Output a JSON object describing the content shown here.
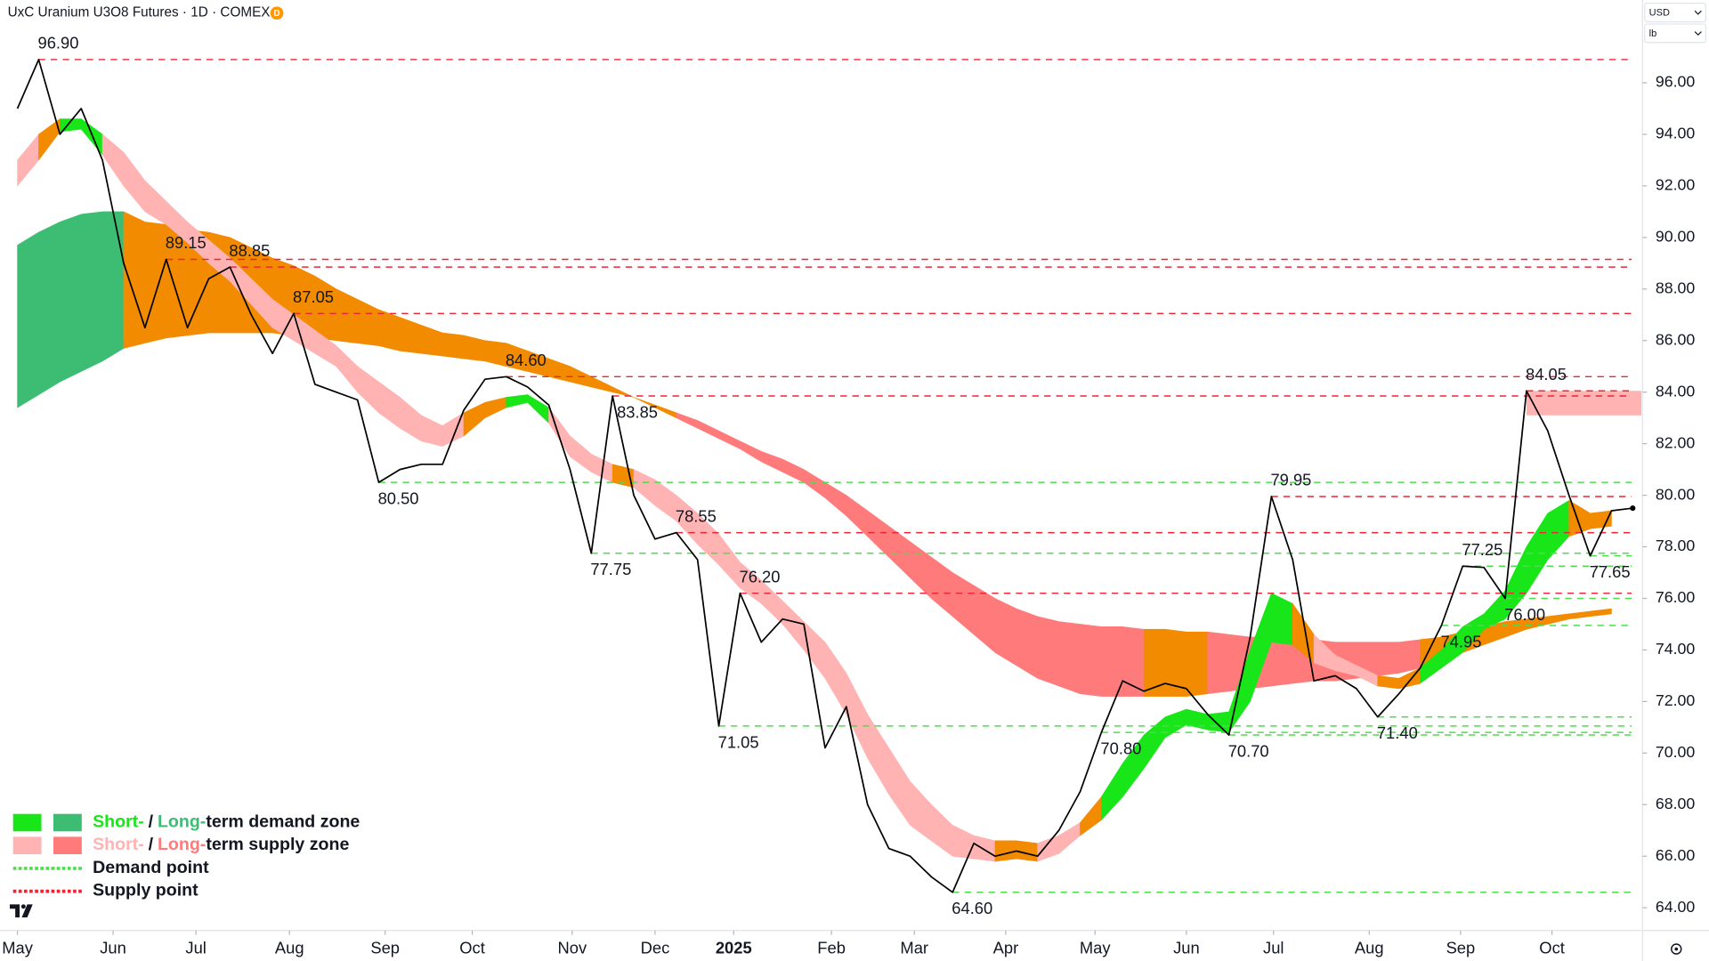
{
  "header": {
    "title": "UxC Uranium U3O8 Futures · 1D · COMEX",
    "badge": "D",
    "currency": "USD",
    "unit": "lb"
  },
  "chart_data": {
    "type": "line",
    "color": "#000000",
    "values": [
      95.0,
      96.9,
      94.0,
      95.0,
      93.0,
      89.0,
      86.5,
      89.15,
      86.5,
      88.4,
      88.85,
      87.0,
      85.5,
      87.05,
      84.3,
      84.0,
      83.7,
      80.5,
      81.0,
      81.2,
      81.2,
      83.3,
      84.5,
      84.6,
      84.2,
      83.5,
      81.0,
      77.75,
      83.85,
      80.0,
      78.3,
      78.55,
      77.5,
      71.05,
      76.2,
      74.3,
      75.2,
      75.0,
      70.2,
      71.8,
      68.0,
      66.3,
      66.0,
      65.2,
      64.6,
      66.5,
      66.0,
      66.2,
      66.0,
      67.0,
      68.5,
      70.8,
      72.8,
      72.4,
      72.7,
      72.5,
      71.5,
      70.7,
      74.5,
      79.95,
      77.5,
      72.8,
      73.0,
      72.5,
      71.4,
      72.3,
      73.3,
      74.95,
      77.25,
      77.2,
      76.0,
      84.05,
      82.5,
      80.0,
      77.65,
      79.4,
      79.5
    ],
    "colors": {
      "short_demand": "#19e619",
      "long_demand": "#3dbd73",
      "short_supply": "#ffb3b3",
      "long_supply": "#ff7b7b",
      "neutral": "#f28b00",
      "demand_point": "#4fdc4f",
      "supply_point": "#ec2535"
    },
    "long_term": {
      "upper": [
        89.7,
        90.2,
        90.6,
        90.9,
        91.0,
        91.0,
        90.6,
        90.5,
        90.3,
        90.2,
        90.0,
        89.6,
        89.2,
        88.9,
        88.5,
        88.0,
        87.6,
        87.2,
        86.9,
        86.6,
        86.3,
        86.2,
        86.0,
        85.9,
        85.6,
        85.3,
        85.0,
        84.6,
        84.2,
        83.8,
        83.5,
        83.2,
        82.9,
        82.5,
        82.1,
        81.7,
        81.4,
        81.0,
        80.5,
        80.0,
        79.4,
        78.8,
        78.2,
        77.6,
        77.0,
        76.5,
        76.0,
        75.6,
        75.3,
        75.1,
        75.0,
        74.9,
        74.9,
        74.8,
        74.8,
        74.7,
        74.7,
        74.6,
        74.5,
        74.5,
        74.4,
        74.4,
        74.3,
        74.3,
        74.3,
        74.3,
        74.4,
        74.5,
        74.7,
        74.9,
        75.1,
        75.2,
        75.3,
        75.4,
        75.5,
        75.6
      ],
      "lower": [
        83.4,
        83.9,
        84.4,
        84.8,
        85.2,
        85.7,
        85.9,
        86.1,
        86.2,
        86.3,
        86.3,
        86.3,
        86.3,
        86.2,
        86.1,
        86.0,
        85.9,
        85.8,
        85.6,
        85.5,
        85.4,
        85.3,
        85.2,
        85.0,
        84.8,
        84.6,
        84.4,
        84.2,
        84.0,
        83.8,
        83.4,
        83.0,
        82.6,
        82.2,
        81.8,
        81.3,
        80.9,
        80.5,
        79.9,
        79.2,
        78.4,
        77.6,
        76.8,
        76.0,
        75.3,
        74.6,
        73.9,
        73.4,
        72.9,
        72.6,
        72.3,
        72.2,
        72.2,
        72.2,
        72.2,
        72.2,
        72.3,
        72.4,
        72.5,
        72.6,
        72.7,
        72.8,
        72.8,
        72.9,
        73.0,
        73.1,
        73.3,
        73.6,
        73.9,
        74.2,
        74.5,
        74.8,
        75.0,
        75.2,
        75.3,
        75.4
      ],
      "segments": [
        {
          "from": 0,
          "to": 5,
          "zone": "long_demand"
        },
        {
          "from": 5,
          "to": 31,
          "zone": "neutral"
        },
        {
          "from": 31,
          "to": 53,
          "zone": "long_supply"
        },
        {
          "from": 53,
          "to": 56,
          "zone": "neutral"
        },
        {
          "from": 56,
          "to": 66,
          "zone": "long_supply"
        },
        {
          "from": 66,
          "to": 75,
          "zone": "neutral"
        }
      ]
    },
    "short_term": {
      "upper": [
        93.0,
        94.0,
        94.6,
        94.6,
        94.0,
        93.3,
        92.2,
        91.4,
        90.6,
        89.9,
        89.2,
        88.4,
        87.6,
        87.0,
        86.4,
        85.8,
        85.0,
        84.4,
        83.8,
        83.1,
        82.7,
        83.2,
        83.6,
        83.8,
        83.9,
        83.4,
        82.3,
        81.6,
        81.2,
        81.0,
        80.6,
        80.0,
        79.3,
        78.5,
        77.4,
        76.7,
        75.9,
        75.1,
        74.3,
        73.1,
        71.5,
        70.2,
        68.9,
        68.0,
        67.2,
        66.8,
        66.6,
        66.6,
        66.5,
        66.8,
        67.3,
        68.3,
        69.6,
        70.7,
        71.4,
        71.7,
        71.5,
        71.6,
        74.0,
        76.2,
        75.8,
        74.6,
        73.8,
        73.4,
        73.0,
        72.9,
        73.3,
        74.0,
        74.9,
        75.4,
        76.3,
        78.0,
        79.3,
        79.8,
        79.3,
        79.4
      ],
      "lower": [
        92.0,
        93.0,
        94.1,
        94.2,
        93.2,
        92.0,
        91.0,
        90.5,
        89.8,
        89.0,
        88.3,
        87.4,
        86.5,
        86.0,
        85.5,
        85.0,
        84.0,
        83.2,
        82.6,
        82.1,
        81.9,
        82.3,
        83.0,
        83.4,
        83.6,
        82.8,
        81.5,
        80.9,
        80.5,
        80.3,
        79.6,
        79.0,
        78.1,
        77.3,
        76.4,
        75.8,
        75.0,
        74.0,
        72.9,
        71.5,
        69.8,
        68.4,
        67.2,
        66.6,
        66.0,
        65.9,
        65.8,
        65.9,
        65.8,
        66.1,
        66.8,
        67.4,
        68.3,
        69.4,
        70.6,
        71.1,
        70.9,
        70.8,
        72.0,
        74.3,
        74.2,
        73.5,
        73.2,
        73.0,
        72.6,
        72.5,
        72.7,
        73.3,
        73.9,
        74.8,
        75.2,
        76.2,
        77.5,
        78.4,
        78.7,
        78.8
      ],
      "segments": [
        {
          "from": 0,
          "to": 1,
          "zone": "short_supply"
        },
        {
          "from": 1,
          "to": 2,
          "zone": "neutral"
        },
        {
          "from": 2,
          "to": 4,
          "zone": "short_demand"
        },
        {
          "from": 4,
          "to": 21,
          "zone": "short_supply"
        },
        {
          "from": 21,
          "to": 23,
          "zone": "neutral"
        },
        {
          "from": 23,
          "to": 25,
          "zone": "short_demand"
        },
        {
          "from": 25,
          "to": 28,
          "zone": "short_supply"
        },
        {
          "from": 28,
          "to": 29,
          "zone": "neutral"
        },
        {
          "from": 29,
          "to": 46,
          "zone": "short_supply"
        },
        {
          "from": 46,
          "to": 48,
          "zone": "neutral"
        },
        {
          "from": 48,
          "to": 50,
          "zone": "short_supply"
        },
        {
          "from": 50,
          "to": 51,
          "zone": "neutral"
        },
        {
          "from": 51,
          "to": 60,
          "zone": "short_demand"
        },
        {
          "from": 60,
          "to": 61,
          "zone": "neutral"
        },
        {
          "from": 61,
          "to": 64,
          "zone": "short_supply"
        },
        {
          "from": 64,
          "to": 66,
          "zone": "neutral"
        },
        {
          "from": 66,
          "to": 73,
          "zone": "short_demand"
        },
        {
          "from": 73,
          "to": 75,
          "zone": "neutral"
        }
      ]
    },
    "supply_zone": {
      "from": 71,
      "low": 83.1,
      "high": 84.05
    },
    "annotations": [
      {
        "x": 1,
        "value": 96.9,
        "label": "96.90",
        "kind": "supply_point",
        "position": "above"
      },
      {
        "x": 7,
        "value": 89.15,
        "label": "89.15",
        "kind": "supply_point",
        "position": "above"
      },
      {
        "x": 10,
        "value": 88.85,
        "label": "88.85",
        "kind": "supply_point",
        "position": "above"
      },
      {
        "x": 13,
        "value": 87.05,
        "label": "87.05",
        "kind": "supply_point",
        "position": "above"
      },
      {
        "x": 17,
        "value": 80.5,
        "label": "80.50",
        "kind": "demand_point",
        "position": "below"
      },
      {
        "x": 23,
        "value": 84.6,
        "label": "84.60",
        "kind": "supply_point",
        "position": "above"
      },
      {
        "x": 27,
        "value": 77.75,
        "label": "77.75",
        "kind": "demand_point",
        "position": "below"
      },
      {
        "x": 28,
        "value": 83.85,
        "label": "83.85",
        "kind": "supply_point",
        "position": "right"
      },
      {
        "x": 31,
        "value": 78.55,
        "label": "78.55",
        "kind": "supply_point",
        "position": "above"
      },
      {
        "x": 33,
        "value": 71.05,
        "label": "71.05",
        "kind": "demand_point",
        "position": "below"
      },
      {
        "x": 34,
        "value": 76.2,
        "label": "76.20",
        "kind": "supply_point",
        "position": "above"
      },
      {
        "x": 44,
        "value": 64.6,
        "label": "64.60",
        "kind": "demand_point",
        "position": "below"
      },
      {
        "x": 51,
        "value": 70.8,
        "label": "70.80",
        "kind": "demand_point",
        "position": "below"
      },
      {
        "x": 57,
        "value": 70.7,
        "label": "70.70",
        "kind": "demand_point",
        "position": "below"
      },
      {
        "x": 59,
        "value": 79.95,
        "label": "79.95",
        "kind": "supply_point",
        "position": "above"
      },
      {
        "x": 64,
        "value": 71.4,
        "label": "71.40",
        "kind": "demand_point",
        "position": "below"
      },
      {
        "x": 67,
        "value": 74.95,
        "label": "74.95",
        "kind": "demand_point",
        "position": "below"
      },
      {
        "x": 68,
        "value": 77.25,
        "label": "77.25",
        "kind": "demand_point",
        "position": "above"
      },
      {
        "x": 70,
        "value": 76.0,
        "label": "76.00",
        "kind": "demand_point",
        "position": "below"
      },
      {
        "x": 71,
        "value": 84.05,
        "label": "84.05",
        "kind": "supply_point",
        "position": "above"
      },
      {
        "x": 74,
        "value": 77.65,
        "label": "77.65",
        "kind": "demand_point",
        "position": "below"
      }
    ],
    "legend": [
      {
        "swatches": [
          "short_demand",
          "long_demand"
        ],
        "parts": [
          {
            "text": "Short-",
            "zone": "short_demand"
          },
          {
            "text": "/"
          },
          {
            "text": "Long-",
            "zone": "long_demand"
          },
          {
            "text": "term demand zone"
          }
        ]
      },
      {
        "swatches": [
          "short_supply",
          "long_supply"
        ],
        "parts": [
          {
            "text": "Short-",
            "zone": "short_supply"
          },
          {
            "text": "/"
          },
          {
            "text": "Long-",
            "zone": "long_supply"
          },
          {
            "text": "term supply zone"
          }
        ]
      },
      {
        "line": "demand_point",
        "parts": [
          {
            "text": "Demand point"
          }
        ]
      },
      {
        "line": "supply_point",
        "parts": [
          {
            "text": "Supply point"
          }
        ]
      }
    ],
    "xlim": [
      -0.82,
      76.46
    ],
    "xticks": [
      {
        "value": 0,
        "label": "May"
      },
      {
        "value": 4.5,
        "label": "Jun"
      },
      {
        "value": 8.4,
        "label": "Jul"
      },
      {
        "value": 12.8,
        "label": "Aug"
      },
      {
        "value": 17.3,
        "label": "Sep"
      },
      {
        "value": 21.4,
        "label": "Oct"
      },
      {
        "value": 26.1,
        "label": "Nov"
      },
      {
        "value": 30,
        "label": "Dec"
      },
      {
        "value": 33.7,
        "label": "2025"
      },
      {
        "value": 38.3,
        "label": "Feb"
      },
      {
        "value": 42.2,
        "label": "Mar"
      },
      {
        "value": 46.5,
        "label": "Apr"
      },
      {
        "value": 50.7,
        "label": "May"
      },
      {
        "value": 55,
        "label": "Jun"
      },
      {
        "value": 59.1,
        "label": "Jul"
      },
      {
        "value": 63.6,
        "label": "Aug"
      },
      {
        "value": 67.9,
        "label": "Sep"
      },
      {
        "value": 72.2,
        "label": "Oct"
      }
    ],
    "ylim": [
      63.16,
      99.21
    ],
    "yticks": [
      {
        "value": 64,
        "label": "64.00"
      },
      {
        "value": 66,
        "label": "66.00"
      },
      {
        "value": 68,
        "label": "68.00"
      },
      {
        "value": 70,
        "label": "70.00"
      },
      {
        "value": 72,
        "label": "72.00"
      },
      {
        "value": 74,
        "label": "74.00"
      },
      {
        "value": 76,
        "label": "76.00"
      },
      {
        "value": 78,
        "label": "78.00"
      },
      {
        "value": 80,
        "label": "80.00"
      },
      {
        "value": 82,
        "label": "82.00"
      },
      {
        "value": 84,
        "label": "84.00"
      },
      {
        "value": 86,
        "label": "86.00"
      },
      {
        "value": 88,
        "label": "88.00"
      },
      {
        "value": 90,
        "label": "90.00"
      },
      {
        "value": 92,
        "label": "92.00"
      },
      {
        "value": 94,
        "label": "94.00"
      },
      {
        "value": 96,
        "label": "96.00"
      }
    ]
  }
}
